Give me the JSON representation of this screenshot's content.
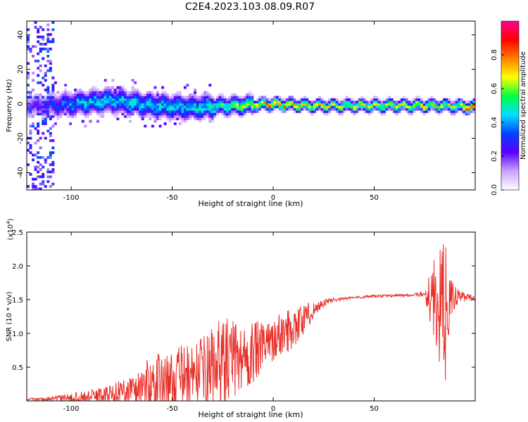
{
  "title": "C2E4.2023.103.08.09.R07",
  "colors": {
    "trace": "#e8302a",
    "axis": "#000000"
  },
  "chart_data": [
    {
      "type": "heatmap",
      "xlabel": "Height of straight line (km)",
      "ylabel": "Frequency (Hz)",
      "xlim": [
        -122,
        100
      ],
      "ylim": [
        -50,
        48
      ],
      "xticks": [
        -100,
        -50,
        0,
        50
      ],
      "xtick_labels": [
        "-100",
        "-50",
        "0",
        "50"
      ],
      "yticks": [
        -40,
        -20,
        0,
        20,
        40
      ],
      "ytick_labels": [
        "-40",
        "-20",
        "0",
        "20",
        "40"
      ],
      "colorbar": {
        "label": "Normalized spectral amplitude",
        "range": [
          0,
          1
        ],
        "ticks": [
          0,
          0.2,
          0.4,
          0.6,
          0.8
        ],
        "tick_labels": [
          "0.0",
          "0.2",
          "0.4",
          "0.6",
          "0.8"
        ],
        "colormap": [
          "#ffffff",
          "#c9a3ff",
          "#5a00ff",
          "#0040ff",
          "#00e0ff",
          "#00ff40",
          "#ffff00",
          "#ff8000",
          "#ff0000",
          "#ff0090"
        ]
      },
      "ridge": {
        "x": [
          -115,
          -100,
          -80,
          -60,
          -40,
          -20,
          0,
          20,
          40,
          60,
          80,
          85,
          100
        ],
        "freq": [
          -1,
          0,
          2,
          -1,
          -2,
          -1,
          0,
          -1,
          -1,
          -1,
          -1,
          -1,
          -2
        ],
        "amplitude": [
          0.2,
          0.4,
          0.45,
          0.45,
          0.45,
          0.55,
          0.75,
          0.65,
          0.65,
          0.65,
          0.65,
          0.6,
          0.8
        ]
      }
    },
    {
      "type": "line",
      "xlabel": "Height of straight line (km)",
      "ylabel": "SNR (10 * v/v)",
      "y_multiplier": "(x10",
      "y_multiplier_exp": "4",
      "y_multiplier_close": ")",
      "xlim": [
        -122,
        100
      ],
      "ylim": [
        0,
        2.5
      ],
      "xticks": [
        -100,
        -50,
        0,
        50
      ],
      "xtick_labels": [
        "-100",
        "-50",
        "0",
        "50"
      ],
      "yticks": [
        0.5,
        1.0,
        1.5,
        2.0,
        2.5
      ],
      "ytick_labels": [
        "0.5",
        "1.0",
        "1.5",
        "2.0",
        "2.5"
      ],
      "envelope": {
        "x": [
          -122,
          -110,
          -100,
          -90,
          -80,
          -70,
          -60,
          -50,
          -45,
          -40,
          -35,
          -30,
          -25,
          -20,
          -15,
          -10,
          -5,
          0,
          5,
          10,
          15,
          20,
          25,
          30,
          40,
          50,
          60,
          70,
          75,
          78,
          82,
          85,
          88,
          92,
          100
        ],
        "base": [
          0.02,
          0.03,
          0.05,
          0.07,
          0.1,
          0.15,
          0.25,
          0.3,
          0.35,
          0.4,
          0.45,
          0.5,
          0.55,
          0.6,
          0.65,
          0.7,
          0.8,
          0.9,
          1.0,
          1.1,
          1.2,
          1.35,
          1.45,
          1.5,
          1.53,
          1.55,
          1.56,
          1.57,
          1.58,
          1.55,
          1.4,
          1.3,
          1.5,
          1.55,
          1.52
        ],
        "amp": [
          0.02,
          0.03,
          0.06,
          0.1,
          0.15,
          0.25,
          0.45,
          0.4,
          0.5,
          0.4,
          0.5,
          0.6,
          0.7,
          0.6,
          0.5,
          0.5,
          0.35,
          0.3,
          0.35,
          0.3,
          0.25,
          0.12,
          0.06,
          0.03,
          0.02,
          0.02,
          0.02,
          0.02,
          0.05,
          0.5,
          0.8,
          1.1,
          0.3,
          0.08,
          0.04
        ]
      }
    }
  ]
}
